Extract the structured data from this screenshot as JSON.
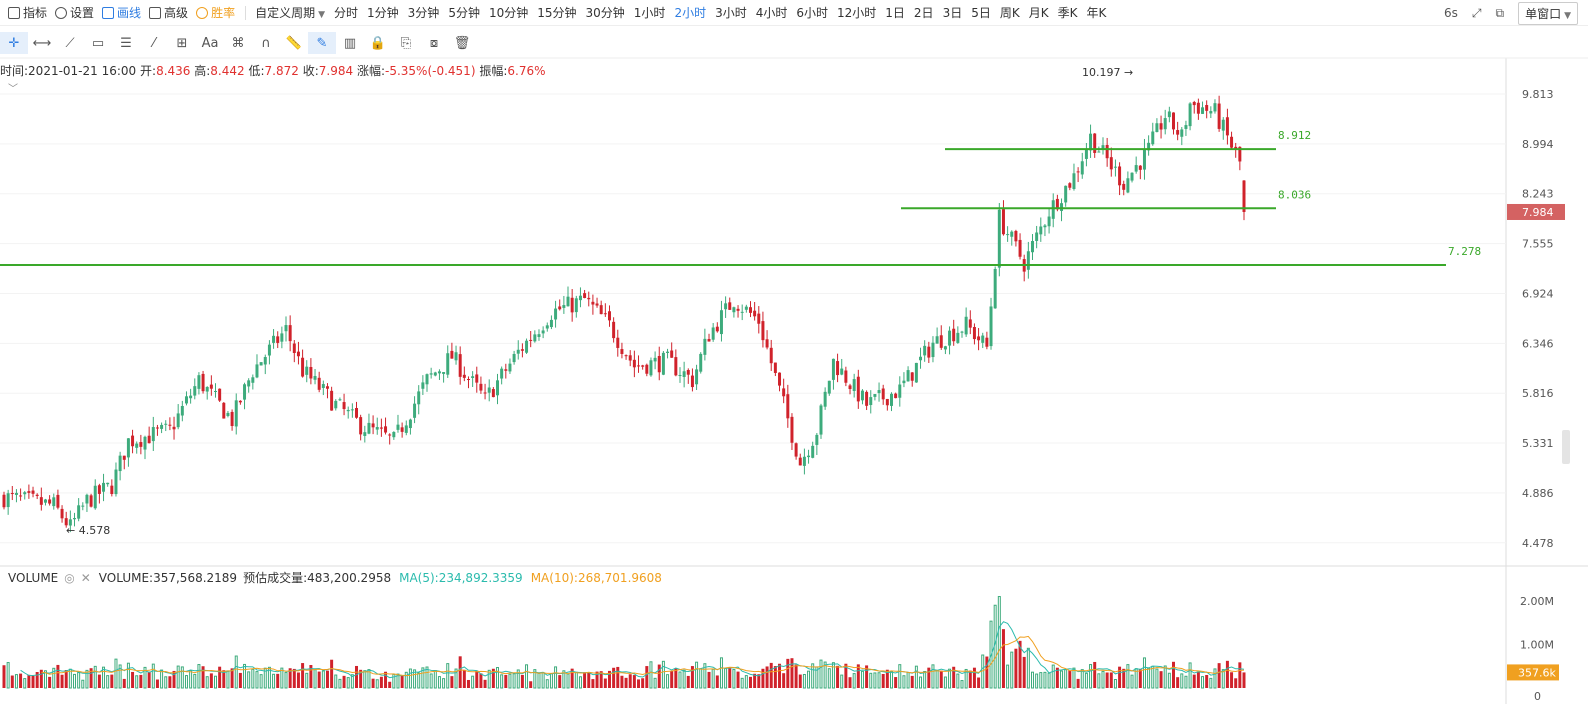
{
  "toolbar": {
    "indicators": "指标",
    "settings": "设置",
    "draw": "画线",
    "advanced": "高级",
    "winrate": "胜率",
    "custom_period": "自定义周期",
    "periods": [
      "分时",
      "1分钟",
      "3分钟",
      "5分钟",
      "10分钟",
      "15分钟",
      "30分钟",
      "1小时",
      "2小时",
      "3小时",
      "4小时",
      "6小时",
      "12小时",
      "1日",
      "2日",
      "3日",
      "5日",
      "周K",
      "月K",
      "季K",
      "年K"
    ],
    "active_period": "2小时",
    "refresh": "6s",
    "window_mode": "单窗口"
  },
  "draw_tools": [
    "crosshair",
    "h-segment",
    "trend-line",
    "rectangle",
    "parallel",
    "fib",
    "measure",
    "text",
    "pattern",
    "magnet",
    "ruler",
    "brush",
    "bars",
    "lock",
    "copy",
    "screenshot",
    "trash"
  ],
  "info": {
    "time_label": "时间:",
    "time": "2021-01-21 16:00",
    "open_label": "开:",
    "open": "8.436",
    "high_label": "高:",
    "high": "8.442",
    "low_label": "低:",
    "low": "7.872",
    "close_label": "收:",
    "close": "7.984",
    "change_label": "涨幅:",
    "change": "-5.35%(-0.451)",
    "amp_label": "振幅:",
    "amp": "6.76%"
  },
  "volume_header": {
    "name": "VOLUME",
    "volume": "VOLUME:357,568.2189",
    "estimated": "预估成交量:483,200.2958",
    "ma5": "MA(5):234,892.3359",
    "ma10": "MA(10):268,701.9608"
  },
  "chart_data": {
    "type": "candlestick",
    "y_ticks": [
      "9.813",
      "8.994",
      "8.243",
      "7.555",
      "6.924",
      "6.346",
      "5.816",
      "5.331",
      "4.886",
      "4.478"
    ],
    "y_tick_values": [
      9.813,
      8.994,
      8.243,
      7.555,
      6.924,
      6.346,
      5.816,
      5.331,
      4.886,
      4.478
    ],
    "ylim": [
      4.3,
      10.45
    ],
    "log_scale": true,
    "current_price": "7.984",
    "max_label": "10.197",
    "min_label": "4.578",
    "horizontal_lines": [
      {
        "value": 8.912,
        "label": "8.912"
      },
      {
        "value": 8.036,
        "label": "8.036"
      },
      {
        "value": 7.278,
        "label": "7.278"
      }
    ],
    "bar_count": 300,
    "path_anchors": [
      [
        0,
        4.85
      ],
      [
        12,
        4.78
      ],
      [
        16,
        4.6
      ],
      [
        20,
        4.82
      ],
      [
        26,
        4.95
      ],
      [
        30,
        5.35
      ],
      [
        40,
        5.45
      ],
      [
        47,
        5.95
      ],
      [
        55,
        5.55
      ],
      [
        60,
        6.05
      ],
      [
        68,
        6.5
      ],
      [
        72,
        6.05
      ],
      [
        80,
        5.7
      ],
      [
        86,
        5.5
      ],
      [
        94,
        5.35
      ],
      [
        102,
        5.95
      ],
      [
        108,
        6.2
      ],
      [
        116,
        5.75
      ],
      [
        124,
        6.25
      ],
      [
        132,
        6.7
      ],
      [
        140,
        6.85
      ],
      [
        146,
        6.55
      ],
      [
        152,
        6.1
      ],
      [
        160,
        6.15
      ],
      [
        166,
        5.95
      ],
      [
        170,
        6.45
      ],
      [
        176,
        6.85
      ],
      [
        182,
        6.6
      ],
      [
        188,
        5.7
      ],
      [
        192,
        5.15
      ],
      [
        196,
        5.45
      ],
      [
        200,
        6.15
      ],
      [
        208,
        5.7
      ],
      [
        216,
        5.85
      ],
      [
        224,
        6.35
      ],
      [
        232,
        6.55
      ],
      [
        237,
        6.3
      ],
      [
        240,
        7.9
      ],
      [
        246,
        7.3
      ],
      [
        252,
        8.0
      ],
      [
        258,
        8.5
      ],
      [
        262,
        9.1
      ],
      [
        270,
        8.4
      ],
      [
        276,
        8.9
      ],
      [
        280,
        9.45
      ],
      [
        284,
        9.1
      ],
      [
        286,
        9.65
      ],
      [
        292,
        9.5
      ],
      [
        298,
        8.7
      ],
      [
        302,
        8.3
      ],
      [
        308,
        8.85
      ],
      [
        312,
        8.05
      ]
    ],
    "volume_ticks": [
      "2.00M",
      "1.00M"
    ],
    "volume_tick_values": [
      2000000,
      1000000
    ],
    "current_volume": "357.6k"
  },
  "colors": {
    "up": "#3dab7c",
    "down": "#d0222b",
    "support": "#3aa82a",
    "ma5": "#2bbbad",
    "ma10": "#f0a020",
    "price_tag": "#d46262"
  }
}
